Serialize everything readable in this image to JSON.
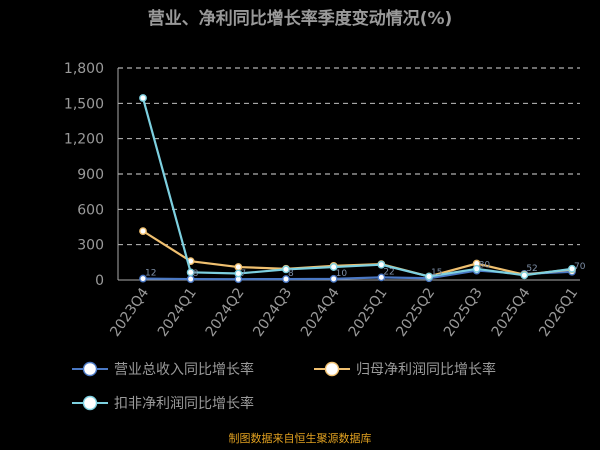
{
  "chart_data": {
    "type": "line",
    "title": "营业、净利同比增长率季度变动情况(%)",
    "categories": [
      "2023Q4",
      "2024Q1",
      "2024Q2",
      "2024Q3",
      "2024Q4",
      "2025Q1",
      "2025Q2",
      "2025Q3",
      "2025Q4",
      "2026Q1"
    ],
    "ylim": [
      0,
      1800
    ],
    "yticks": [
      "0",
      "300",
      "600",
      "900",
      "1,200",
      "1,500",
      "1,800"
    ],
    "grid": true,
    "legend_position": "bottom",
    "series": [
      {
        "name": "营业总收入同比增长率",
        "color": "#4a78c4",
        "values": [
          12,
          8,
          7,
          8,
          10,
          22,
          15,
          80,
          52,
          70
        ]
      },
      {
        "name": "归母净利润同比增长率",
        "color": "#f0c070",
        "values": [
          415,
          160,
          110,
          95,
          120,
          135,
          30,
          140,
          45,
          90
        ]
      },
      {
        "name": "扣非净利润同比增长率",
        "color": "#7dd0e0",
        "values": [
          1545,
          65,
          55,
          90,
          110,
          130,
          30,
          95,
          40,
          95
        ]
      }
    ],
    "source": "制图数据来自恒生聚源数据库"
  }
}
